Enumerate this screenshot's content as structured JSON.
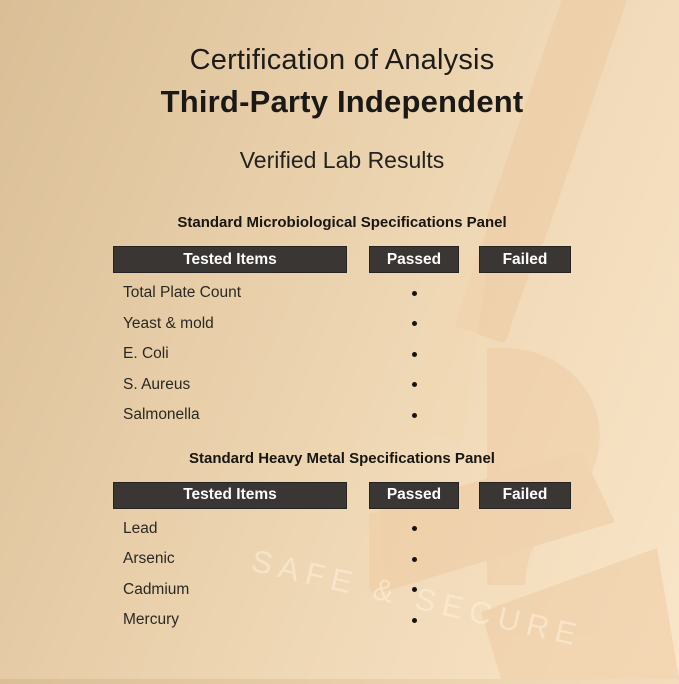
{
  "header": {
    "title": "Certification of Analysis",
    "subtitle": "Third-Party Independent",
    "tagline": "Verified Lab Results"
  },
  "columns": [
    "Tested Items",
    "Passed",
    "Failed"
  ],
  "panels": [
    {
      "title": "Standard Microbiological Specifications Panel",
      "rows": [
        {
          "item": "Total Plate Count",
          "passed": true,
          "failed": false
        },
        {
          "item": "Yeast & mold",
          "passed": true,
          "failed": false
        },
        {
          "item": "E. Coli",
          "passed": true,
          "failed": false
        },
        {
          "item": "S. Aureus",
          "passed": true,
          "failed": false
        },
        {
          "item": "Salmonella",
          "passed": true,
          "failed": false
        }
      ]
    },
    {
      "title": "Standard Heavy Metal Specifications Panel",
      "rows": [
        {
          "item": "Lead",
          "passed": true,
          "failed": false
        },
        {
          "item": "Arsenic",
          "passed": true,
          "failed": false
        },
        {
          "item": "Cadmium",
          "passed": true,
          "failed": false
        },
        {
          "item": "Mercury",
          "passed": true,
          "failed": false
        }
      ]
    }
  ],
  "watermark": {
    "text": "SAFE & SECURE",
    "icon": "microscope-icon"
  },
  "colors": {
    "background_left": "#d9be96",
    "background_right": "#f9e5c8",
    "header_box": "#3a3633",
    "header_text": "#ffffff",
    "body_text": "#2b2823",
    "title_text": "#1b1916",
    "bullet": "#161412",
    "silhouette": "#eec9a0",
    "watermark_text": "#fff0db"
  }
}
